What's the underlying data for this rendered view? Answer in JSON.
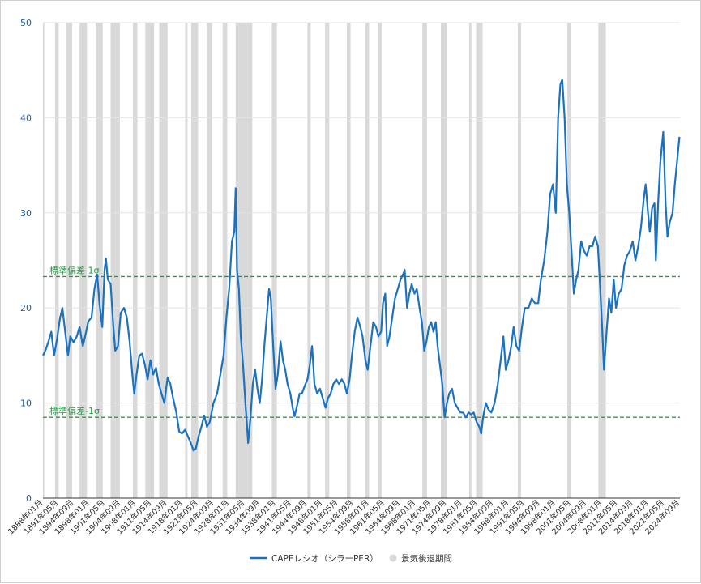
{
  "chart_data": {
    "type": "line",
    "title": "",
    "xlabel": "",
    "ylabel": "",
    "ylim": [
      0,
      50
    ],
    "yticks": [
      0,
      10,
      20,
      30,
      40,
      50
    ],
    "xlim": [
      1888.0,
      2025.5
    ],
    "xtick_labels": [
      "1888年01月",
      "1891年05月",
      "1894年09月",
      "1898年01月",
      "1901年05月",
      "1904年09月",
      "1908年01月",
      "1911年05月",
      "1914年09月",
      "1918年01月",
      "1921年05月",
      "1924年09月",
      "1928年01月",
      "1931年05月",
      "1934年09月",
      "1938年01月",
      "1941年05月",
      "1944年09月",
      "1948年01月",
      "1951年05月",
      "1954年09月",
      "1958年01月",
      "1961年05月",
      "1964年09月",
      "1968年01月",
      "1971年05月",
      "1974年09月",
      "1978年01月",
      "1981年05月",
      "1984年09月",
      "1988年01月",
      "1991年05月",
      "1994年09月",
      "1998年01月",
      "2001年05月",
      "2004年09月",
      "2008年01月",
      "2011年05月",
      "2014年09月",
      "2018年01月",
      "2021年05月",
      "2024年09月"
    ],
    "grid": {
      "horizontal": true,
      "vertical": false
    },
    "legend_position": "bottom",
    "reference_lines": [
      {
        "label": "標準偏差 1σ",
        "value": 23.3,
        "color": "#22a046"
      },
      {
        "label": "標準偏差-1σ",
        "value": 8.5,
        "color": "#22a046"
      }
    ],
    "series": [
      {
        "name": "CAPEレシオ（シラーPER）",
        "color": "#1a72c1",
        "points": [
          [
            1888.0,
            15.0
          ],
          [
            1888.6,
            15.6
          ],
          [
            1889.2,
            16.5
          ],
          [
            1889.8,
            17.5
          ],
          [
            1890.4,
            15.0
          ],
          [
            1891.0,
            16.6
          ],
          [
            1891.7,
            19.0
          ],
          [
            1892.2,
            20.0
          ],
          [
            1892.8,
            17.5
          ],
          [
            1893.4,
            15.0
          ],
          [
            1893.9,
            17.0
          ],
          [
            1894.6,
            16.4
          ],
          [
            1895.3,
            17.0
          ],
          [
            1895.9,
            18.0
          ],
          [
            1896.6,
            16.0
          ],
          [
            1897.1,
            17.0
          ],
          [
            1897.8,
            18.6
          ],
          [
            1898.5,
            19.0
          ],
          [
            1899.1,
            22.0
          ],
          [
            1899.7,
            23.5
          ],
          [
            1900.2,
            20.5
          ],
          [
            1900.8,
            18.0
          ],
          [
            1901.3,
            24.0
          ],
          [
            1901.6,
            25.2
          ],
          [
            1902.0,
            23.0
          ],
          [
            1902.6,
            22.5
          ],
          [
            1903.2,
            18.0
          ],
          [
            1903.6,
            15.5
          ],
          [
            1904.2,
            16.0
          ],
          [
            1904.8,
            19.5
          ],
          [
            1905.5,
            20.0
          ],
          [
            1906.1,
            19.0
          ],
          [
            1906.7,
            16.5
          ],
          [
            1907.3,
            13.0
          ],
          [
            1907.7,
            11.0
          ],
          [
            1908.2,
            13.0
          ],
          [
            1908.8,
            15.0
          ],
          [
            1909.4,
            15.2
          ],
          [
            1910.0,
            14.0
          ],
          [
            1910.6,
            12.5
          ],
          [
            1911.2,
            14.5
          ],
          [
            1911.8,
            13.0
          ],
          [
            1912.4,
            13.7
          ],
          [
            1913.0,
            12.0
          ],
          [
            1913.6,
            11.0
          ],
          [
            1914.2,
            10.0
          ],
          [
            1914.9,
            12.7
          ],
          [
            1915.5,
            12.0
          ],
          [
            1916.1,
            10.5
          ],
          [
            1916.8,
            9.0
          ],
          [
            1917.4,
            7.0
          ],
          [
            1918.0,
            6.8
          ],
          [
            1918.7,
            7.2
          ],
          [
            1919.3,
            6.5
          ],
          [
            1919.9,
            5.8
          ],
          [
            1920.5,
            5.0
          ],
          [
            1921.0,
            5.2
          ],
          [
            1921.6,
            6.5
          ],
          [
            1922.2,
            7.5
          ],
          [
            1922.8,
            8.7
          ],
          [
            1923.4,
            7.5
          ],
          [
            1924.0,
            8.0
          ],
          [
            1924.8,
            10.0
          ],
          [
            1925.6,
            11.0
          ],
          [
            1926.3,
            13.0
          ],
          [
            1927.0,
            15.0
          ],
          [
            1927.6,
            19.0
          ],
          [
            1928.2,
            22.0
          ],
          [
            1928.8,
            27.0
          ],
          [
            1929.3,
            28.0
          ],
          [
            1929.6,
            32.6
          ],
          [
            1929.9,
            24.0
          ],
          [
            1930.3,
            22.0
          ],
          [
            1930.7,
            17.0
          ],
          [
            1931.2,
            14.0
          ],
          [
            1931.7,
            10.0
          ],
          [
            1932.0,
            8.0
          ],
          [
            1932.3,
            5.8
          ],
          [
            1932.8,
            8.5
          ],
          [
            1933.3,
            12.0
          ],
          [
            1933.8,
            13.5
          ],
          [
            1934.3,
            11.5
          ],
          [
            1934.8,
            10.0
          ],
          [
            1935.3,
            12.5
          ],
          [
            1935.8,
            16.0
          ],
          [
            1936.3,
            19.0
          ],
          [
            1936.8,
            22.0
          ],
          [
            1937.2,
            21.0
          ],
          [
            1937.7,
            16.0
          ],
          [
            1938.2,
            11.5
          ],
          [
            1938.7,
            13.0
          ],
          [
            1939.3,
            16.5
          ],
          [
            1939.8,
            14.5
          ],
          [
            1940.3,
            13.5
          ],
          [
            1940.8,
            12.0
          ],
          [
            1941.4,
            11.0
          ],
          [
            1941.9,
            9.5
          ],
          [
            1942.3,
            8.6
          ],
          [
            1942.9,
            9.8
          ],
          [
            1943.4,
            11.0
          ],
          [
            1943.9,
            11.0
          ],
          [
            1944.5,
            11.8
          ],
          [
            1945.1,
            12.5
          ],
          [
            1945.6,
            14.0
          ],
          [
            1946.1,
            16.0
          ],
          [
            1946.6,
            12.0
          ],
          [
            1947.2,
            11.0
          ],
          [
            1947.8,
            11.5
          ],
          [
            1948.4,
            10.5
          ],
          [
            1949.0,
            9.5
          ],
          [
            1949.5,
            10.5
          ],
          [
            1950.1,
            11.0
          ],
          [
            1950.7,
            12.0
          ],
          [
            1951.3,
            12.5
          ],
          [
            1951.9,
            12.0
          ],
          [
            1952.5,
            12.5
          ],
          [
            1953.1,
            12.0
          ],
          [
            1953.6,
            11.0
          ],
          [
            1954.2,
            12.5
          ],
          [
            1954.7,
            15.0
          ],
          [
            1955.3,
            17.5
          ],
          [
            1955.9,
            19.0
          ],
          [
            1956.5,
            18.0
          ],
          [
            1957.0,
            17.0
          ],
          [
            1957.6,
            14.5
          ],
          [
            1958.1,
            13.5
          ],
          [
            1958.7,
            16.0
          ],
          [
            1959.3,
            18.5
          ],
          [
            1959.9,
            18.0
          ],
          [
            1960.4,
            17.0
          ],
          [
            1961.0,
            17.5
          ],
          [
            1961.4,
            20.5
          ],
          [
            1961.9,
            21.5
          ],
          [
            1962.3,
            16.0
          ],
          [
            1962.8,
            17.0
          ],
          [
            1963.4,
            19.0
          ],
          [
            1964.0,
            21.0
          ],
          [
            1964.6,
            22.0
          ],
          [
            1965.2,
            23.0
          ],
          [
            1965.7,
            23.5
          ],
          [
            1966.1,
            24.0
          ],
          [
            1966.6,
            20.0
          ],
          [
            1967.1,
            21.5
          ],
          [
            1967.6,
            22.5
          ],
          [
            1968.2,
            21.5
          ],
          [
            1968.7,
            22.0
          ],
          [
            1969.3,
            20.0
          ],
          [
            1969.8,
            18.5
          ],
          [
            1970.3,
            15.5
          ],
          [
            1970.8,
            16.5
          ],
          [
            1971.3,
            18.0
          ],
          [
            1971.8,
            18.5
          ],
          [
            1972.3,
            17.5
          ],
          [
            1972.8,
            18.5
          ],
          [
            1973.2,
            16.0
          ],
          [
            1973.7,
            14.0
          ],
          [
            1974.2,
            12.0
          ],
          [
            1974.7,
            8.5
          ],
          [
            1975.2,
            10.0
          ],
          [
            1975.7,
            11.0
          ],
          [
            1976.3,
            11.5
          ],
          [
            1976.9,
            10.0
          ],
          [
            1977.5,
            9.5
          ],
          [
            1978.1,
            9.0
          ],
          [
            1978.7,
            9.0
          ],
          [
            1979.3,
            8.5
          ],
          [
            1979.9,
            9.0
          ],
          [
            1980.4,
            8.8
          ],
          [
            1981.0,
            9.0
          ],
          [
            1981.6,
            8.0
          ],
          [
            1982.2,
            7.5
          ],
          [
            1982.6,
            6.8
          ],
          [
            1983.0,
            8.5
          ],
          [
            1983.6,
            10.0
          ],
          [
            1984.2,
            9.3
          ],
          [
            1984.8,
            9.0
          ],
          [
            1985.5,
            10.0
          ],
          [
            1986.2,
            12.0
          ],
          [
            1986.8,
            14.5
          ],
          [
            1987.4,
            17.0
          ],
          [
            1987.9,
            13.5
          ],
          [
            1988.5,
            14.5
          ],
          [
            1989.1,
            16.0
          ],
          [
            1989.6,
            18.0
          ],
          [
            1990.2,
            16.0
          ],
          [
            1990.8,
            15.5
          ],
          [
            1991.4,
            18.0
          ],
          [
            1992.0,
            20.0
          ],
          [
            1992.8,
            20.0
          ],
          [
            1993.5,
            21.0
          ],
          [
            1994.2,
            20.5
          ],
          [
            1994.9,
            20.5
          ],
          [
            1995.5,
            23.0
          ],
          [
            1996.2,
            25.0
          ],
          [
            1996.9,
            28.0
          ],
          [
            1997.5,
            32.0
          ],
          [
            1998.1,
            33.0
          ],
          [
            1998.7,
            30.0
          ],
          [
            1999.2,
            40.0
          ],
          [
            1999.7,
            43.5
          ],
          [
            2000.1,
            44.0
          ],
          [
            2000.6,
            40.0
          ],
          [
            2001.1,
            33.0
          ],
          [
            2001.6,
            30.0
          ],
          [
            2002.1,
            26.0
          ],
          [
            2002.6,
            21.5
          ],
          [
            2003.1,
            23.0
          ],
          [
            2003.6,
            24.0
          ],
          [
            2004.2,
            27.0
          ],
          [
            2004.8,
            26.0
          ],
          [
            2005.4,
            25.5
          ],
          [
            2006.0,
            26.5
          ],
          [
            2006.6,
            26.5
          ],
          [
            2007.2,
            27.5
          ],
          [
            2007.8,
            26.5
          ],
          [
            2008.3,
            22.0
          ],
          [
            2008.7,
            18.0
          ],
          [
            2009.1,
            13.5
          ],
          [
            2009.6,
            17.0
          ],
          [
            2010.2,
            21.0
          ],
          [
            2010.7,
            19.5
          ],
          [
            2011.2,
            23.0
          ],
          [
            2011.7,
            20.0
          ],
          [
            2012.3,
            21.5
          ],
          [
            2012.9,
            22.0
          ],
          [
            2013.5,
            24.5
          ],
          [
            2014.1,
            25.5
          ],
          [
            2014.7,
            26.0
          ],
          [
            2015.3,
            27.0
          ],
          [
            2015.9,
            25.0
          ],
          [
            2016.5,
            26.5
          ],
          [
            2017.1,
            28.5
          ],
          [
            2017.7,
            31.5
          ],
          [
            2018.1,
            33.0
          ],
          [
            2018.6,
            30.0
          ],
          [
            2019.0,
            28.0
          ],
          [
            2019.5,
            30.5
          ],
          [
            2020.0,
            31.0
          ],
          [
            2020.3,
            25.0
          ],
          [
            2020.8,
            31.0
          ],
          [
            2021.3,
            35.5
          ],
          [
            2021.9,
            38.5
          ],
          [
            2022.4,
            31.0
          ],
          [
            2022.8,
            27.5
          ],
          [
            2023.3,
            29.0
          ],
          [
            2023.9,
            30.0
          ],
          [
            2024.4,
            33.0
          ],
          [
            2024.9,
            35.5
          ],
          [
            2025.4,
            38.0
          ]
        ]
      }
    ],
    "recession_legend": "景気後退期間",
    "recession_color": "#d9d9d9",
    "recessions": [
      [
        1887.5,
        1888.3
      ],
      [
        1890.6,
        1891.4
      ],
      [
        1893.0,
        1894.3
      ],
      [
        1895.9,
        1897.5
      ],
      [
        1899.4,
        1900.9
      ],
      [
        1902.6,
        1904.6
      ],
      [
        1907.4,
        1908.4
      ],
      [
        1910.1,
        1912.0
      ],
      [
        1913.1,
        1914.9
      ],
      [
        1918.7,
        1919.2
      ],
      [
        1920.0,
        1921.5
      ],
      [
        1923.4,
        1924.5
      ],
      [
        1926.8,
        1927.8
      ],
      [
        1929.6,
        1933.2
      ],
      [
        1937.4,
        1938.5
      ],
      [
        1945.1,
        1945.8
      ],
      [
        1948.9,
        1949.8
      ],
      [
        1953.6,
        1954.4
      ],
      [
        1957.6,
        1958.4
      ],
      [
        1960.3,
        1961.1
      ],
      [
        1969.9,
        1970.9
      ],
      [
        1973.9,
        1975.2
      ],
      [
        1980.0,
        1980.5
      ],
      [
        1981.5,
        1982.9
      ],
      [
        1990.5,
        1991.2
      ],
      [
        2001.2,
        2001.9
      ],
      [
        2007.9,
        2009.5
      ]
    ]
  }
}
